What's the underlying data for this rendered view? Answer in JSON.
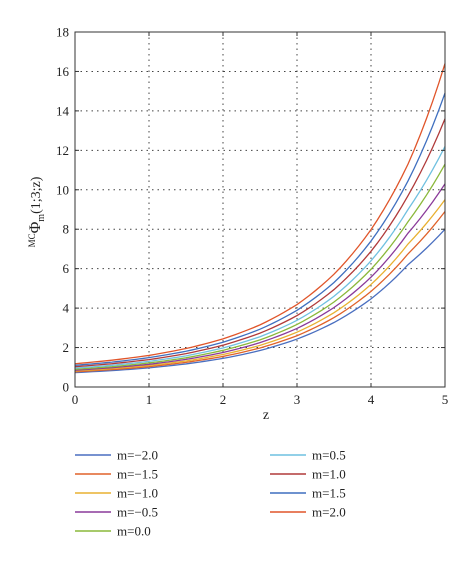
{
  "chart_data": {
    "type": "line",
    "xlabel": "z",
    "ylabel_prefix": "MC",
    "ylabel_main": "Φ",
    "ylabel_sub": "m",
    "ylabel_args": "(1;3;z)",
    "xlim": [
      0,
      5
    ],
    "ylim": [
      0,
      18
    ],
    "xticks": [
      "0",
      "1",
      "2",
      "3",
      "4",
      "5"
    ],
    "yticks": [
      "0",
      "2",
      "4",
      "6",
      "8",
      "10",
      "12",
      "14",
      "16",
      "18"
    ],
    "grid": true,
    "legend_position": "bottom",
    "x": [
      0,
      0.5,
      1,
      1.5,
      2,
      2.5,
      3,
      3.5,
      4,
      4.5,
      5
    ],
    "series": [
      {
        "name": "m=−2.0",
        "color": "#4a6fc0",
        "values": [
          0.73,
          0.83,
          0.97,
          1.17,
          1.45,
          1.85,
          2.43,
          3.27,
          4.47,
          6.2,
          8.0
        ]
      },
      {
        "name": "m=−1.5",
        "color": "#e0622a",
        "values": [
          0.77,
          0.88,
          1.03,
          1.25,
          1.55,
          1.98,
          2.6,
          3.52,
          4.85,
          6.75,
          8.9
        ]
      },
      {
        "name": "m=−1.0",
        "color": "#e8b030",
        "values": [
          0.81,
          0.93,
          1.09,
          1.32,
          1.65,
          2.11,
          2.78,
          3.77,
          5.2,
          7.25,
          9.5
        ]
      },
      {
        "name": "m=−0.5",
        "color": "#8a3a9a",
        "values": [
          0.85,
          0.98,
          1.15,
          1.4,
          1.75,
          2.25,
          2.97,
          4.03,
          5.57,
          7.8,
          10.3
        ]
      },
      {
        "name": "m=0.0",
        "color": "#8ab83a",
        "values": [
          0.9,
          1.03,
          1.22,
          1.48,
          1.86,
          2.39,
          3.17,
          4.31,
          5.97,
          8.38,
          11.3
        ]
      },
      {
        "name": "m=0.5",
        "color": "#6fc0e0",
        "values": [
          0.96,
          1.1,
          1.3,
          1.58,
          1.98,
          2.55,
          3.38,
          4.6,
          6.4,
          9.0,
          12.2
        ]
      },
      {
        "name": "m=1.0",
        "color": "#b03a3a",
        "values": [
          1.03,
          1.18,
          1.39,
          1.69,
          2.12,
          2.73,
          3.62,
          4.94,
          6.88,
          9.7,
          13.6
        ]
      },
      {
        "name": "m=1.5",
        "color": "#3f6fbf",
        "values": [
          1.1,
          1.26,
          1.49,
          1.81,
          2.27,
          2.93,
          3.89,
          5.3,
          7.4,
          10.45,
          14.9
        ]
      },
      {
        "name": "m=2.0",
        "color": "#e0552a",
        "values": [
          1.18,
          1.36,
          1.6,
          1.95,
          2.44,
          3.15,
          4.18,
          5.72,
          7.98,
          11.3,
          16.4
        ]
      }
    ]
  }
}
